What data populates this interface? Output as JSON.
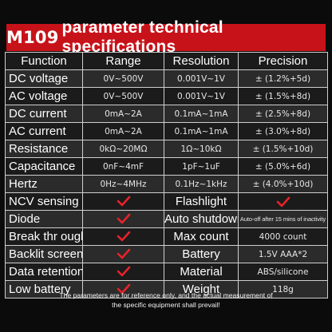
{
  "title": {
    "model": "M109",
    "text": "parameter technical specifications"
  },
  "table": {
    "headers": [
      "Function",
      "Range",
      "Resolution",
      "Precision"
    ],
    "measure_rows": [
      {
        "function": "DC voltage",
        "range": "0V~500V",
        "resolution": "0.001V~1V",
        "precision": "± (1.2%+5d)"
      },
      {
        "function": "AC voltage",
        "range": "0V~500V",
        "resolution": "0.001V~1V",
        "precision": "± (1.5%+8d)"
      },
      {
        "function": "DC current",
        "range": "0mA~2A",
        "resolution": "0.1mA~1mA",
        "precision": "± (2.5%+8d)"
      },
      {
        "function": "AC current",
        "range": "0mA~2A",
        "resolution": "0.1mA~1mA",
        "precision": "± (3.0%+8d)"
      },
      {
        "function": "Resistance",
        "range": "0kΩ~20MΩ",
        "resolution": "1Ω~10kΩ",
        "precision": "± (1.5%+10d)"
      },
      {
        "function": "Capacitance",
        "range": "0nF~4mF",
        "resolution": "1pF~1uF",
        "precision": "± (5.0%+6d)"
      },
      {
        "function": "Hertz",
        "range": "0Hz~4MHz",
        "resolution": "0.1Hz~1kHz",
        "precision": "± (4.0%+10d)"
      }
    ],
    "feature_rows": [
      {
        "left": "NCV sensing",
        "left_check": true,
        "right": "Flashlight",
        "right_value": "",
        "right_check": true
      },
      {
        "left": "Diode",
        "left_check": true,
        "right": "Auto shutdown",
        "right_value": "Auto-off after 15 mins of inactivity",
        "right_check": false
      },
      {
        "left": "Break thr ough",
        "left_check": true,
        "right": "Max count",
        "right_value": "4000 count",
        "right_check": false
      },
      {
        "left": "Backlit screen",
        "left_check": true,
        "right": "Battery",
        "right_value": "1.5V AAA*2",
        "right_check": false
      },
      {
        "left": "Data retention",
        "left_check": true,
        "right": "Material",
        "right_value": "ABS/silicone",
        "right_check": false
      },
      {
        "left": "Low battery",
        "left_check": true,
        "right": "Weight",
        "right_value": "118g",
        "right_check": false
      }
    ]
  },
  "footnote": {
    "line1": "The parameters are for reference only, and the actual measurement of",
    "line2": "the specific equipment shall prevail!"
  },
  "colors": {
    "title_bg": "#c8121a",
    "check": "#e8222a",
    "background": "#0b0b0b"
  }
}
